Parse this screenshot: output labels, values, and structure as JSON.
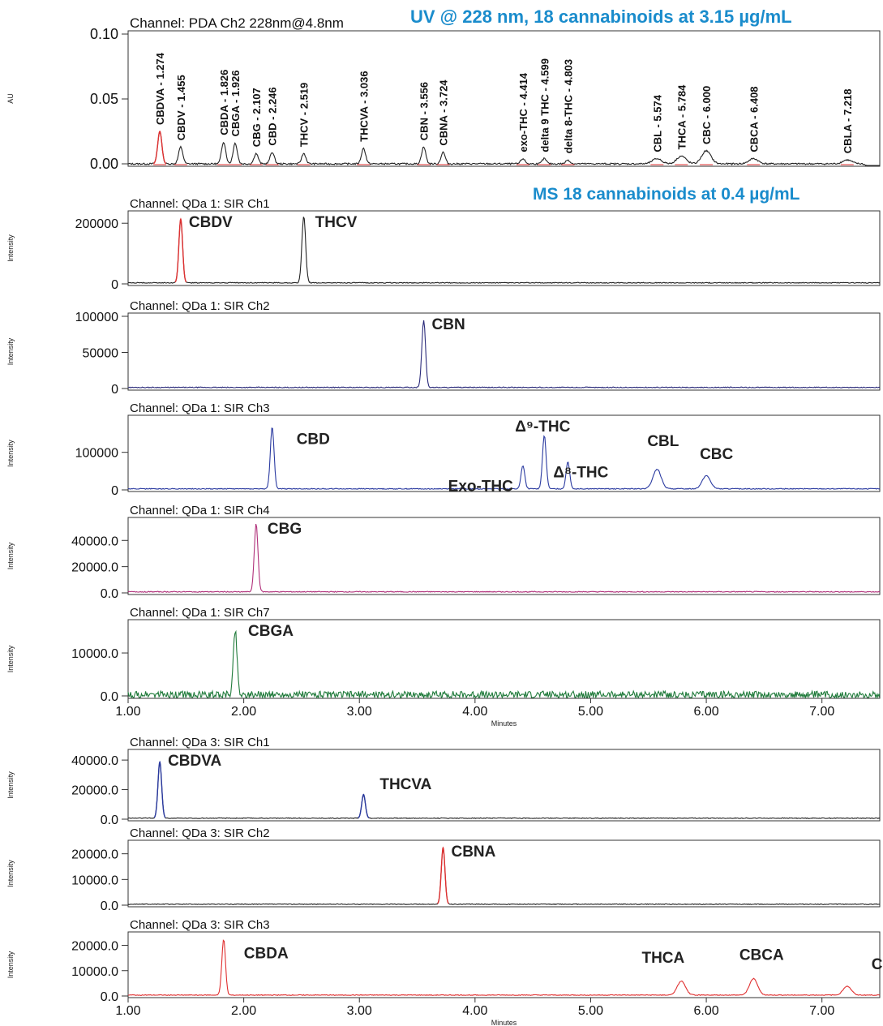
{
  "headers": {
    "uv": "UV @ 228 nm, 18 cannabinoids at 3.15 µg/mL",
    "ms": "MS 18 cannabinoids at 0.4 µg/mL"
  },
  "colors": {
    "header": "#1a8ccc",
    "frame": "#333333",
    "trace_default": "#222222"
  },
  "chart_data": [
    {
      "type": "line",
      "title": "Channel: PDA Ch2 228nm@4.8nm",
      "ylabel": "AU",
      "xlim": [
        1.0,
        7.5
      ],
      "ylim": [
        0,
        0.1
      ],
      "yticks": [
        "0.10",
        "0.05",
        "0.00"
      ],
      "ytick_values": [
        0.1,
        0.05,
        0.0
      ],
      "trace_color": "#222222",
      "peaks": [
        {
          "label": "CBDVA - 1.274",
          "rt": 1.274,
          "height": 0.025,
          "color": "#e03030"
        },
        {
          "label": "CBDV - 1.455",
          "rt": 1.455,
          "height": 0.013
        },
        {
          "label": "CBDA - 1.826",
          "rt": 1.826,
          "height": 0.017
        },
        {
          "label": "CBGA - 1.926",
          "rt": 1.926,
          "height": 0.016
        },
        {
          "label": "CBG - 2.107",
          "rt": 2.107,
          "height": 0.008
        },
        {
          "label": "CBD - 2.246",
          "rt": 2.246,
          "height": 0.009
        },
        {
          "label": "THCV - 2.519",
          "rt": 2.519,
          "height": 0.008
        },
        {
          "label": "THCVA - 3.036",
          "rt": 3.036,
          "height": 0.012
        },
        {
          "label": "CBN - 3.556",
          "rt": 3.556,
          "height": 0.013
        },
        {
          "label": "CBNA - 3.724",
          "rt": 3.724,
          "height": 0.009
        },
        {
          "label": "exo-THC - 4.414",
          "rt": 4.414,
          "height": 0.004
        },
        {
          "label": "delta 9 THC - 4.599",
          "rt": 4.599,
          "height": 0.004
        },
        {
          "label": "delta 8-THC - 4.803",
          "rt": 4.803,
          "height": 0.003
        },
        {
          "label": "CBL - 5.574",
          "rt": 5.574,
          "height": 0.004
        },
        {
          "label": "THCA - 5.784",
          "rt": 5.784,
          "height": 0.006
        },
        {
          "label": "CBC - 6.000",
          "rt": 6.0,
          "height": 0.01
        },
        {
          "label": "CBCA - 6.408",
          "rt": 6.408,
          "height": 0.004
        },
        {
          "label": "CBLA - 7.218",
          "rt": 7.218,
          "height": 0.003
        }
      ]
    },
    {
      "type": "line",
      "title": "Channel: QDa 1: SIR Ch1",
      "ylabel": "Intensity",
      "xlim": [
        1.0,
        7.5
      ],
      "ylim": [
        0,
        230000
      ],
      "yticks": [
        "200000",
        "0"
      ],
      "ytick_values": [
        200000,
        0
      ],
      "trace_color": "#222222",
      "peaks": [
        {
          "name": "CBDV",
          "rt": 1.455,
          "height": 210000,
          "color": "#e03030"
        },
        {
          "name": "THCV",
          "rt": 2.519,
          "height": 220000
        }
      ]
    },
    {
      "type": "line",
      "title": "Channel: QDa 1: SIR Ch2",
      "ylabel": "Intensity",
      "xlim": [
        1.0,
        7.5
      ],
      "ylim": [
        0,
        100000
      ],
      "yticks": [
        "100000",
        "50000",
        "0"
      ],
      "ytick_values": [
        100000,
        50000,
        0
      ],
      "trace_color": "#2a2a7a",
      "peaks": [
        {
          "name": "CBN",
          "rt": 3.556,
          "height": 93000
        }
      ]
    },
    {
      "type": "line",
      "title": "Channel: QDa 1: SIR Ch3",
      "ylabel": "Intensity",
      "xlim": [
        1.0,
        7.5
      ],
      "ylim": [
        0,
        190000
      ],
      "yticks": [
        "100000",
        "0"
      ],
      "ytick_values": [
        100000,
        0
      ],
      "trace_color": "#2a3aa0",
      "peaks": [
        {
          "name": "CBD",
          "rt": 2.246,
          "height": 165000
        },
        {
          "name": "Exo-THC",
          "rt": 4.414,
          "height": 62000
        },
        {
          "name": "Δ⁹-THC",
          "rt": 4.599,
          "height": 142000
        },
        {
          "name": "Δ⁸-THC",
          "rt": 4.803,
          "height": 72000
        },
        {
          "name": "CBL",
          "rt": 5.574,
          "height": 52000
        },
        {
          "name": "CBC",
          "rt": 6.0,
          "height": 35000
        }
      ]
    },
    {
      "type": "line",
      "title": "Channel: QDa 1: SIR Ch4",
      "ylabel": "Intensity",
      "xlim": [
        1.0,
        7.5
      ],
      "ylim": [
        0,
        55000
      ],
      "yticks": [
        "40000.0",
        "20000.0",
        "0.0"
      ],
      "ytick_values": [
        40000,
        20000,
        0
      ],
      "trace_color": "#b0307a",
      "peaks": [
        {
          "name": "CBG",
          "rt": 2.107,
          "height": 52000
        }
      ]
    },
    {
      "type": "line",
      "title": "Channel: QDa 1: SIR Ch7",
      "ylabel": "Intensity",
      "xlim": [
        1.0,
        7.5
      ],
      "ylim": [
        0,
        17000
      ],
      "yticks": [
        "10000.0",
        "0.0"
      ],
      "ytick_values": [
        10000,
        0
      ],
      "xticks": [
        "1.00",
        "2.00",
        "3.00",
        "4.00",
        "5.00",
        "6.00",
        "7.00"
      ],
      "xtick_values": [
        1,
        2,
        3,
        4,
        5,
        6,
        7
      ],
      "xlabel": "Minutes",
      "trace_color": "#1f7a3a",
      "peaks": [
        {
          "name": "CBGA",
          "rt": 1.926,
          "height": 15000
        }
      ]
    },
    {
      "type": "line",
      "title": "Channel: QDa 3: SIR Ch1",
      "ylabel": "Intensity",
      "xlim": [
        1.0,
        7.5
      ],
      "ylim": [
        0,
        45000
      ],
      "yticks": [
        "40000.0",
        "20000.0",
        "0.0"
      ],
      "ytick_values": [
        40000,
        20000,
        0
      ],
      "trace_color": "#222222",
      "peaks": [
        {
          "name": "CBDVA",
          "rt": 1.274,
          "height": 38000,
          "color": "#2a3aa0"
        },
        {
          "name": "THCVA",
          "rt": 3.036,
          "height": 16000,
          "color": "#2a3aa0"
        }
      ]
    },
    {
      "type": "line",
      "title": "Channel: QDa 3: SIR Ch2",
      "ylabel": "Intensity",
      "xlim": [
        1.0,
        7.5
      ],
      "ylim": [
        0,
        24000
      ],
      "yticks": [
        "20000.0",
        "10000.0",
        "0.0"
      ],
      "ytick_values": [
        20000,
        10000,
        0
      ],
      "trace_color": "#222222",
      "peaks": [
        {
          "name": "CBNA",
          "rt": 3.724,
          "height": 22000,
          "color": "#e03030"
        }
      ]
    },
    {
      "type": "line",
      "title": "Channel: QDa 3: SIR Ch3",
      "ylabel": "Intensity",
      "xlim": [
        1.0,
        7.5
      ],
      "ylim": [
        0,
        24000
      ],
      "yticks": [
        "20000.0",
        "10000.0",
        "0.0"
      ],
      "ytick_values": [
        20000,
        10000,
        0
      ],
      "xticks": [
        "1.00",
        "2.00",
        "3.00",
        "4.00",
        "5.00",
        "6.00",
        "7.00"
      ],
      "xtick_values": [
        1,
        2,
        3,
        4,
        5,
        6,
        7
      ],
      "xlabel": "Minutes",
      "trace_color": "#e03030",
      "peaks": [
        {
          "name": "CBDA",
          "rt": 1.826,
          "height": 22000
        },
        {
          "name": "THCA",
          "rt": 5.784,
          "height": 5500
        },
        {
          "name": "CBCA",
          "rt": 6.408,
          "height": 6500
        },
        {
          "name": "CBLA",
          "rt": 7.218,
          "height": 3500
        }
      ]
    }
  ]
}
